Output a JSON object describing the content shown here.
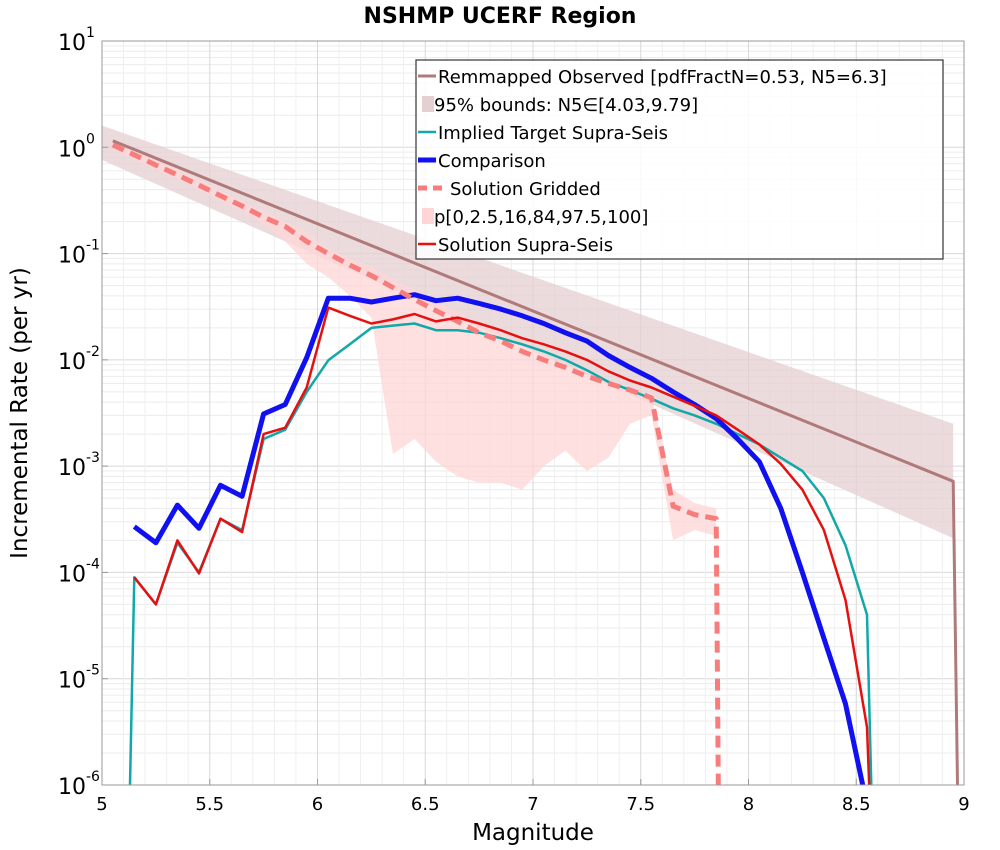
{
  "chart_data": {
    "type": "line",
    "title": "NSHMP UCERF Region",
    "xlabel": "Magnitude",
    "ylabel": "Incremental Rate (per yr)",
    "xlim": [
      5,
      9
    ],
    "ylim": [
      1e-06,
      10
    ],
    "yscale": "log",
    "grid": true,
    "legend_position": "top-right",
    "x_ticks": [
      "5",
      "5.5",
      "6",
      "6.5",
      "7",
      "7.5",
      "8",
      "8.5",
      "9"
    ],
    "y_ticks": [
      {
        "base": "10",
        "exp": "-6"
      },
      {
        "base": "10",
        "exp": "-5"
      },
      {
        "base": "10",
        "exp": "-4"
      },
      {
        "base": "10",
        "exp": "-3"
      },
      {
        "base": "10",
        "exp": "-2"
      },
      {
        "base": "10",
        "exp": "-1"
      },
      {
        "base": "10",
        "exp": "0"
      },
      {
        "base": "10",
        "exp": "1"
      }
    ],
    "series": [
      {
        "name": "Remmapped Observed [pdfFractN=0.53, N5=6.3]",
        "kind": "line",
        "color": "#b07a7a",
        "x": [
          5.05,
          8.95,
          8.97
        ],
        "y": [
          1.15,
          0.00072,
          1e-06
        ]
      },
      {
        "name": "95% bounds: N5∈[4.03,9.79]",
        "kind": "band",
        "color": "#e6cfd1",
        "x": [
          5.0,
          8.95
        ],
        "lower": [
          0.76,
          0.00021
        ],
        "upper": [
          1.6,
          0.0025
        ]
      },
      {
        "name": "p[0,2.5,16,84,97.5,100]",
        "kind": "band",
        "color": "#ffd6d6",
        "x": [
          5.05,
          5.15,
          5.25,
          5.35,
          5.45,
          5.55,
          5.65,
          5.75,
          5.85,
          5.95,
          6.05,
          6.15,
          6.25,
          6.35,
          6.45,
          6.55,
          6.65,
          6.75,
          6.85,
          6.95,
          7.05,
          7.15,
          7.25,
          7.35,
          7.45,
          7.55,
          7.65,
          7.75,
          7.85
        ],
        "lower": [
          0.95,
          0.77,
          0.62,
          0.5,
          0.4,
          0.31,
          0.25,
          0.19,
          0.13,
          0.08,
          0.06,
          0.04,
          0.025,
          0.0013,
          0.0018,
          0.0011,
          0.0008,
          0.0007,
          0.0007,
          0.0006,
          0.001,
          0.0014,
          0.0009,
          0.0012,
          0.0025,
          0.003,
          0.0002,
          0.00025,
          0.00022
        ],
        "upper": [
          1.15,
          0.94,
          0.76,
          0.61,
          0.49,
          0.39,
          0.31,
          0.25,
          0.2,
          0.16,
          0.11,
          0.09,
          0.075,
          0.058,
          0.045,
          0.035,
          0.028,
          0.022,
          0.018,
          0.014,
          0.011,
          0.009,
          0.0075,
          0.006,
          0.005,
          0.0045,
          0.0006,
          0.00045,
          0.0004
        ]
      },
      {
        "name": "Implied Target Supra-Seis",
        "kind": "line",
        "color": "#12a8a8",
        "x": [
          5.13,
          5.15,
          5.25,
          5.35,
          5.45,
          5.55,
          5.65,
          5.75,
          5.85,
          5.95,
          6.05,
          6.15,
          6.25,
          6.35,
          6.45,
          6.55,
          6.65,
          6.75,
          6.85,
          6.95,
          7.05,
          7.15,
          7.25,
          7.35,
          7.45,
          7.55,
          7.65,
          7.75,
          7.85,
          7.95,
          8.05,
          8.15,
          8.25,
          8.35,
          8.45,
          8.55,
          8.57
        ],
        "y": [
          1e-06,
          9e-05,
          5e-05,
          0.00019,
          0.0001,
          0.00032,
          0.00025,
          0.0018,
          0.0022,
          0.005,
          0.0099,
          0.014,
          0.02,
          0.021,
          0.022,
          0.019,
          0.019,
          0.018,
          0.016,
          0.014,
          0.012,
          0.01,
          0.008,
          0.0062,
          0.0052,
          0.0043,
          0.0035,
          0.003,
          0.0025,
          0.002,
          0.0016,
          0.0012,
          0.0009,
          0.0005,
          0.00018,
          4e-05,
          1e-06
        ]
      },
      {
        "name": "Comparison",
        "kind": "line",
        "color": "#1010f0",
        "x": [
          5.15,
          5.25,
          5.35,
          5.45,
          5.55,
          5.65,
          5.75,
          5.85,
          5.95,
          6.05,
          6.15,
          6.25,
          6.35,
          6.45,
          6.55,
          6.65,
          6.75,
          6.85,
          6.95,
          7.05,
          7.15,
          7.25,
          7.35,
          7.45,
          7.55,
          7.65,
          7.75,
          7.85,
          7.95,
          8.05,
          8.15,
          8.25,
          8.35,
          8.45,
          8.53
        ],
        "y": [
          0.00027,
          0.00019,
          0.00043,
          0.00026,
          0.00066,
          0.00052,
          0.0031,
          0.0038,
          0.0105,
          0.038,
          0.038,
          0.035,
          0.038,
          0.041,
          0.036,
          0.038,
          0.034,
          0.03,
          0.026,
          0.022,
          0.018,
          0.015,
          0.011,
          0.0085,
          0.0067,
          0.005,
          0.0038,
          0.0028,
          0.0018,
          0.0011,
          0.0004,
          0.0001,
          2.4e-05,
          5.8e-06,
          1e-06
        ]
      },
      {
        "name": "Solution Gridded",
        "kind": "dashed",
        "color": "#f77c7c",
        "x": [
          5.05,
          5.15,
          5.25,
          5.35,
          5.45,
          5.55,
          5.65,
          5.75,
          5.85,
          5.95,
          6.05,
          6.15,
          6.25,
          6.35,
          6.45,
          6.55,
          6.65,
          6.75,
          6.85,
          6.95,
          7.05,
          7.15,
          7.25,
          7.35,
          7.45,
          7.55,
          7.65,
          7.75,
          7.85,
          7.86
        ],
        "y": [
          1.05,
          0.85,
          0.68,
          0.55,
          0.44,
          0.35,
          0.28,
          0.22,
          0.18,
          0.13,
          0.1,
          0.078,
          0.062,
          0.048,
          0.037,
          0.029,
          0.023,
          0.018,
          0.015,
          0.012,
          0.01,
          0.0085,
          0.007,
          0.006,
          0.0052,
          0.0044,
          0.00042,
          0.00035,
          0.00032,
          1e-06
        ]
      },
      {
        "name": "Solution Supra-Seis",
        "kind": "line",
        "color": "#e61010",
        "x": [
          5.15,
          5.25,
          5.35,
          5.45,
          5.55,
          5.65,
          5.75,
          5.85,
          5.95,
          6.05,
          6.15,
          6.25,
          6.35,
          6.45,
          6.55,
          6.65,
          6.75,
          6.85,
          6.95,
          7.05,
          7.15,
          7.25,
          7.35,
          7.45,
          7.55,
          7.65,
          7.75,
          7.85,
          7.95,
          8.05,
          8.15,
          8.25,
          8.35,
          8.45,
          8.55,
          8.56
        ],
        "y": [
          9e-05,
          5e-05,
          0.0002,
          9.8e-05,
          0.00032,
          0.00024,
          0.002,
          0.0023,
          0.0055,
          0.031,
          0.026,
          0.022,
          0.024,
          0.027,
          0.023,
          0.025,
          0.022,
          0.019,
          0.016,
          0.014,
          0.012,
          0.01,
          0.0078,
          0.0064,
          0.0055,
          0.0045,
          0.0037,
          0.003,
          0.0022,
          0.0016,
          0.00105,
          0.0006,
          0.00025,
          5.5e-05,
          3.5e-06,
          1e-06
        ]
      }
    ]
  }
}
